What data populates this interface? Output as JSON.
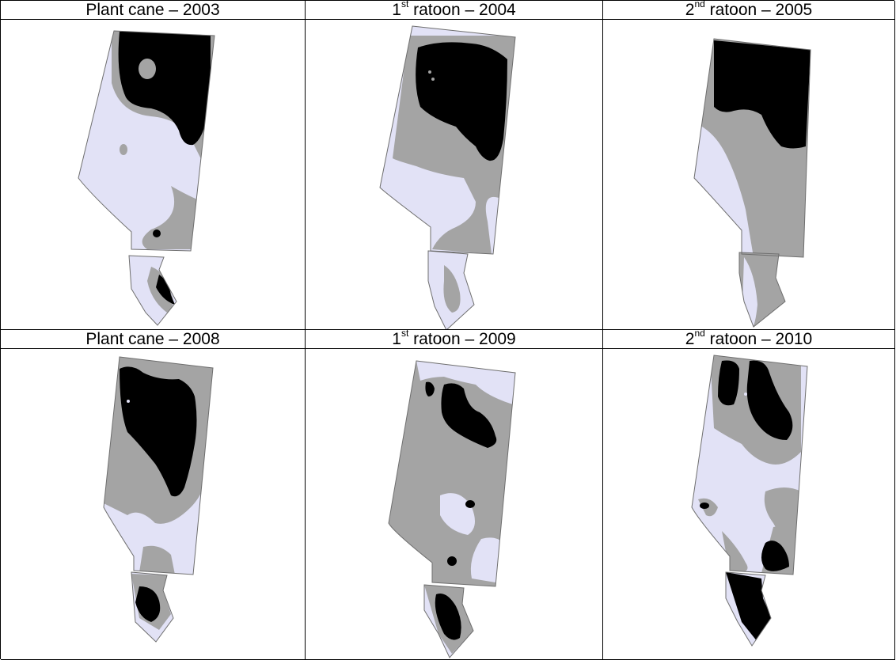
{
  "panels": [
    {
      "title": "Plant cane – 2003",
      "count": "",
      "sup": "",
      "rest": ""
    },
    {
      "title": "",
      "count": "1",
      "sup": "st",
      "rest": " ratoon – 2004"
    },
    {
      "title": "",
      "count": "2",
      "sup": "nd",
      "rest": " ratoon – 2005"
    },
    {
      "title": "Plant cane – 2008",
      "count": "",
      "sup": "",
      "rest": ""
    },
    {
      "title": "",
      "count": "1",
      "sup": "st",
      "rest": " ratoon – 2009"
    },
    {
      "title": "",
      "count": "2",
      "sup": "nd",
      "rest": " ratoon – 2010"
    }
  ],
  "colors": {
    "zone_low": "#e2e2f6",
    "zone_mid": "#a4a4a4",
    "zone_high": "#000000",
    "boundary": "#6e6e6e"
  }
}
